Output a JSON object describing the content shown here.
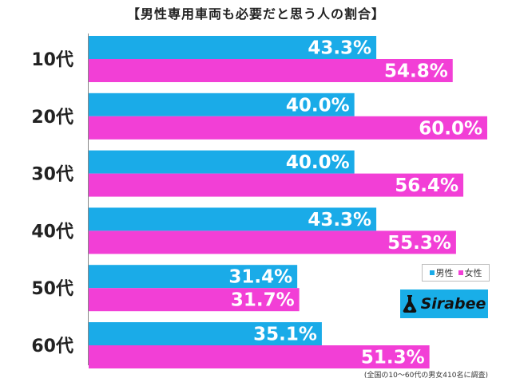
{
  "chart_data": {
    "type": "bar",
    "orientation": "horizontal",
    "title": "【男性専用車両も必要だと思う人の割合】",
    "categories": [
      "10代",
      "20代",
      "30代",
      "40代",
      "50代",
      "60代"
    ],
    "series": [
      {
        "name": "男性",
        "color": "#1aabe8",
        "values": [
          43.3,
          40.0,
          40.0,
          43.3,
          31.4,
          35.1
        ],
        "labels": [
          "43.3%",
          "40.0%",
          "40.0%",
          "43.3%",
          "31.4%",
          "35.1%"
        ]
      },
      {
        "name": "女性",
        "color": "#f23fd6",
        "values": [
          54.8,
          60.0,
          56.4,
          55.3,
          31.7,
          51.3
        ],
        "labels": [
          "54.8%",
          "60.0%",
          "56.4%",
          "55.3%",
          "31.7%",
          "51.3%"
        ]
      }
    ],
    "xlim": [
      0,
      60
    ],
    "grid": false,
    "legend_position": "bottom-right"
  },
  "brand": {
    "name": "Sirabee",
    "color": "#19aee8"
  },
  "footnote": "(全国の10〜60代の男女410名に調査)"
}
